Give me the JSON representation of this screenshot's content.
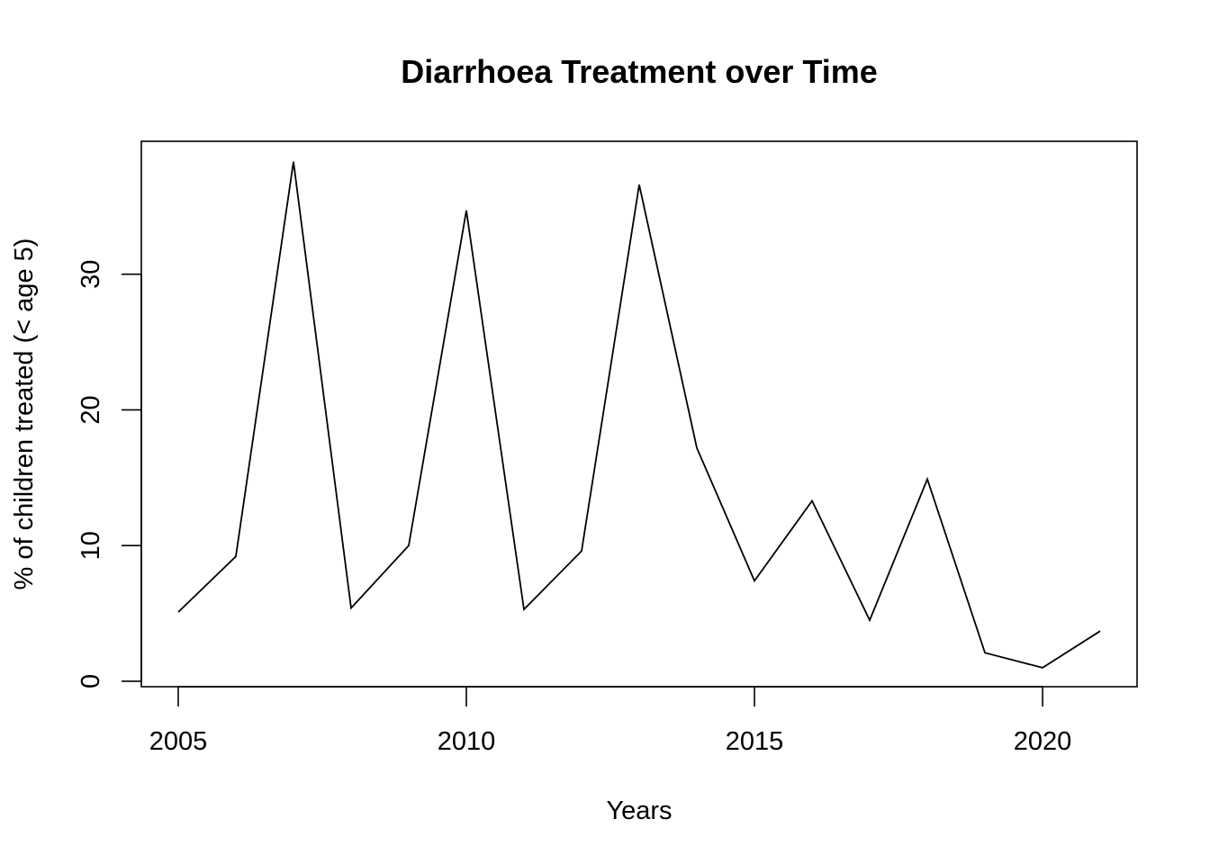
{
  "chart_data": {
    "type": "line",
    "title": "Diarrhoea Treatment over Time",
    "xlabel": "Years",
    "ylabel": "% of children treated (< age 5)",
    "x": [
      2005,
      2006,
      2007,
      2008,
      2009,
      2010,
      2011,
      2012,
      2013,
      2014,
      2015,
      2016,
      2017,
      2018,
      2019,
      2020,
      2021
    ],
    "series": [
      {
        "values": [
          5.1,
          9.2,
          38.3,
          5.4,
          10.0,
          34.7,
          5.3,
          9.6,
          36.6,
          17.2,
          7.4,
          13.3,
          4.5,
          14.9,
          2.1,
          1.0,
          3.7
        ]
      }
    ],
    "xlim": [
      2004.36,
      2021.64
    ],
    "ylim": [
      -0.4,
      39.8
    ],
    "xticks": [
      2005,
      2010,
      2015,
      2020
    ],
    "yticks": [
      0,
      10,
      20,
      30
    ],
    "xtick_labels": [
      "2005",
      "2010",
      "2015",
      "2020"
    ],
    "ytick_labels": [
      "0",
      "10",
      "20",
      "30"
    ],
    "grid": false,
    "legend": "none",
    "line_color": "#000000"
  }
}
